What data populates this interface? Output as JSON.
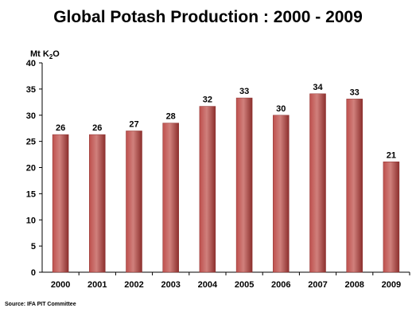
{
  "chart_data": {
    "type": "bar",
    "title": "Global Potash Production : 2000 - 2009",
    "unit_label": {
      "prefix": "Mt K",
      "subscript": "2",
      "suffix": "O"
    },
    "categories": [
      "2000",
      "2001",
      "2002",
      "2003",
      "2004",
      "2005",
      "2006",
      "2007",
      "2008",
      "2009"
    ],
    "values": [
      26.3,
      26.3,
      27,
      28.5,
      31.7,
      33.3,
      30,
      34.1,
      33.1,
      21.1
    ],
    "data_labels": [
      "26",
      "26",
      "27",
      "28",
      "32",
      "33",
      "30",
      "34",
      "33",
      "21"
    ],
    "ylim": [
      0,
      40
    ],
    "yticks": [
      "0",
      "5",
      "10",
      "15",
      "20",
      "25",
      "30",
      "35",
      "40"
    ],
    "grid": false,
    "colors": {
      "bar": "#be504d",
      "bar_highlight": "#d0807c",
      "bar_shadow": "#8c2f2d"
    }
  },
  "source_note": "Source: IFA PIT Committee"
}
